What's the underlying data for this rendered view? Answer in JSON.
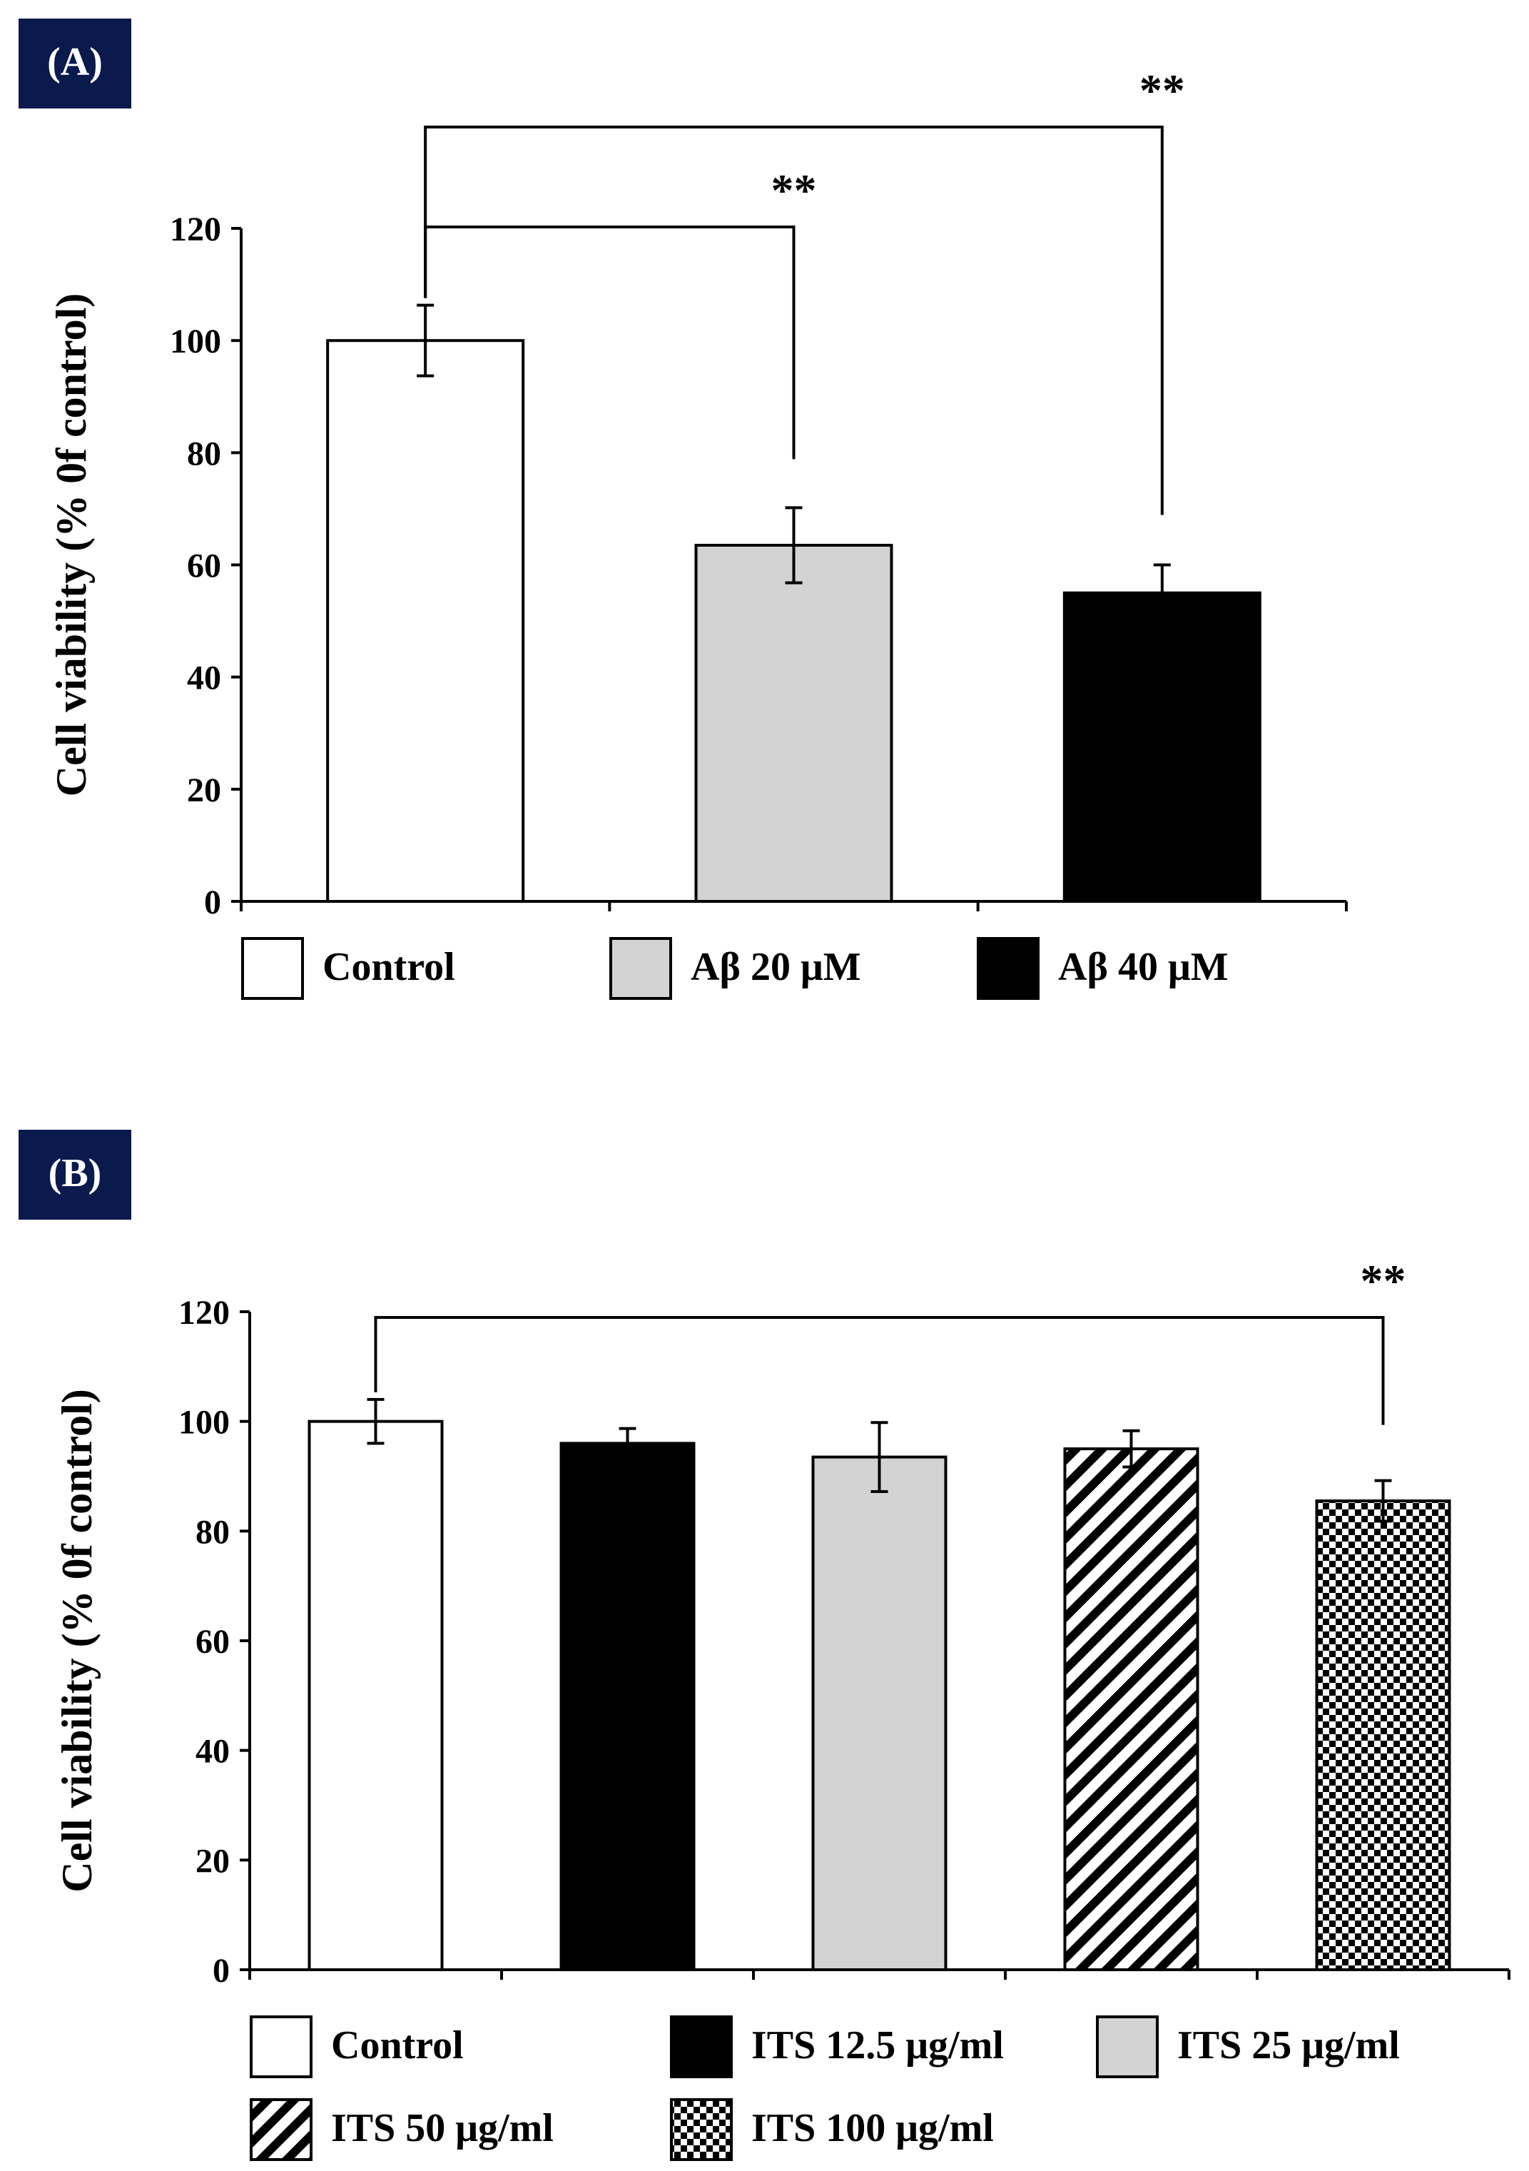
{
  "colors": {
    "badge_bg": "#0b1a4d",
    "badge_text": "#ffffff",
    "axis": "#000000",
    "white": "#ffffff",
    "gray": "#d3d3d3",
    "black": "#000000"
  },
  "chart_data": [
    {
      "panel_label": "(A)",
      "type": "bar",
      "ylabel": "Cell viability (% 0f control)",
      "xlabel": "",
      "ylim": [
        0,
        120
      ],
      "yticks": [
        0,
        20,
        40,
        60,
        80,
        100,
        120
      ],
      "ytick_labels": [
        "0",
        "20",
        "40",
        "60",
        "80",
        "100",
        "120"
      ],
      "categories": [
        "Control",
        "Aβ 20 μM",
        "Aβ 40 μM"
      ],
      "values": [
        100,
        63.5,
        55
      ],
      "errors": [
        6.3,
        6.7,
        5
      ],
      "fills": [
        "white",
        "gray",
        "black"
      ],
      "legend": [
        {
          "label": "Control",
          "fill": "white"
        },
        {
          "label": "Aβ 20 μM",
          "fill": "gray"
        },
        {
          "label": "Aβ 40 μM",
          "fill": "black"
        }
      ],
      "legend_position": "bottom",
      "significance": [
        {
          "from": 0,
          "to": 1,
          "label": "**"
        },
        {
          "from": 0,
          "to": 2,
          "label": "**"
        }
      ]
    },
    {
      "panel_label": "(B)",
      "type": "bar",
      "ylabel": "Cell viability (% 0f control)",
      "xlabel": "",
      "ylim": [
        0,
        120
      ],
      "yticks": [
        0,
        20,
        40,
        60,
        80,
        100,
        120
      ],
      "ytick_labels": [
        "0",
        "20",
        "40",
        "60",
        "80",
        "100",
        "120"
      ],
      "categories": [
        "Control",
        "ITS 12.5 μg/ml",
        "ITS 25 μg/ml",
        "ITS 50 μg/ml",
        "ITS 100 μg/ml"
      ],
      "values": [
        100,
        96,
        93.5,
        95,
        85.5
      ],
      "errors": [
        4,
        2.7,
        6.3,
        3.3,
        3.7
      ],
      "fills": [
        "white",
        "black",
        "gray",
        "diagonal",
        "checker"
      ],
      "legend": [
        {
          "label": "Control",
          "fill": "white"
        },
        {
          "label": "ITS 12.5 μg/ml",
          "fill": "black"
        },
        {
          "label": "ITS 25 μg/ml",
          "fill": "gray"
        },
        {
          "label": "ITS 50 μg/ml",
          "fill": "diagonal"
        },
        {
          "label": "ITS 100 μg/ml",
          "fill": "checker"
        }
      ],
      "legend_position": "bottom",
      "significance": [
        {
          "from": 0,
          "to": 4,
          "label": "**"
        }
      ]
    }
  ]
}
